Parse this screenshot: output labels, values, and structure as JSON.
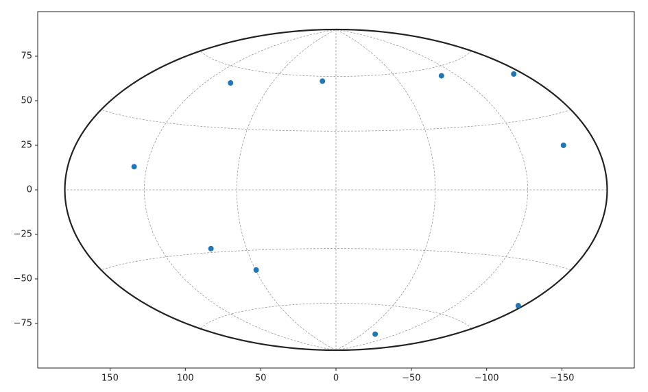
{
  "chart_data": {
    "type": "scatter",
    "projection": "hammer",
    "series": [
      {
        "color": "#1f77b4",
        "x": [
          134,
          70,
          9,
          -70,
          -118,
          -151,
          83,
          53,
          -26,
          -121
        ],
        "values": [
          13,
          60,
          61,
          64,
          65,
          25,
          -33,
          -45,
          -81,
          -65
        ]
      }
    ],
    "xlim": [
      198,
      -198
    ],
    "ylim": [
      -100,
      100
    ],
    "xticks": [
      150,
      100,
      50,
      0,
      {
        "value": -50,
        "label": "−50"
      },
      {
        "value": -100,
        "label": "−100"
      },
      {
        "value": -150,
        "label": "−150"
      }
    ],
    "yticks": [
      {
        "value": -75,
        "label": "−75"
      },
      {
        "value": -50,
        "label": "−50"
      },
      {
        "value": -25,
        "label": "−25"
      },
      0,
      25,
      50,
      75
    ],
    "grid": true,
    "grid_lons": [
      -120,
      -60,
      0,
      60,
      120
    ],
    "grid_lats": [
      -60,
      -30,
      0,
      30,
      60
    ]
  }
}
